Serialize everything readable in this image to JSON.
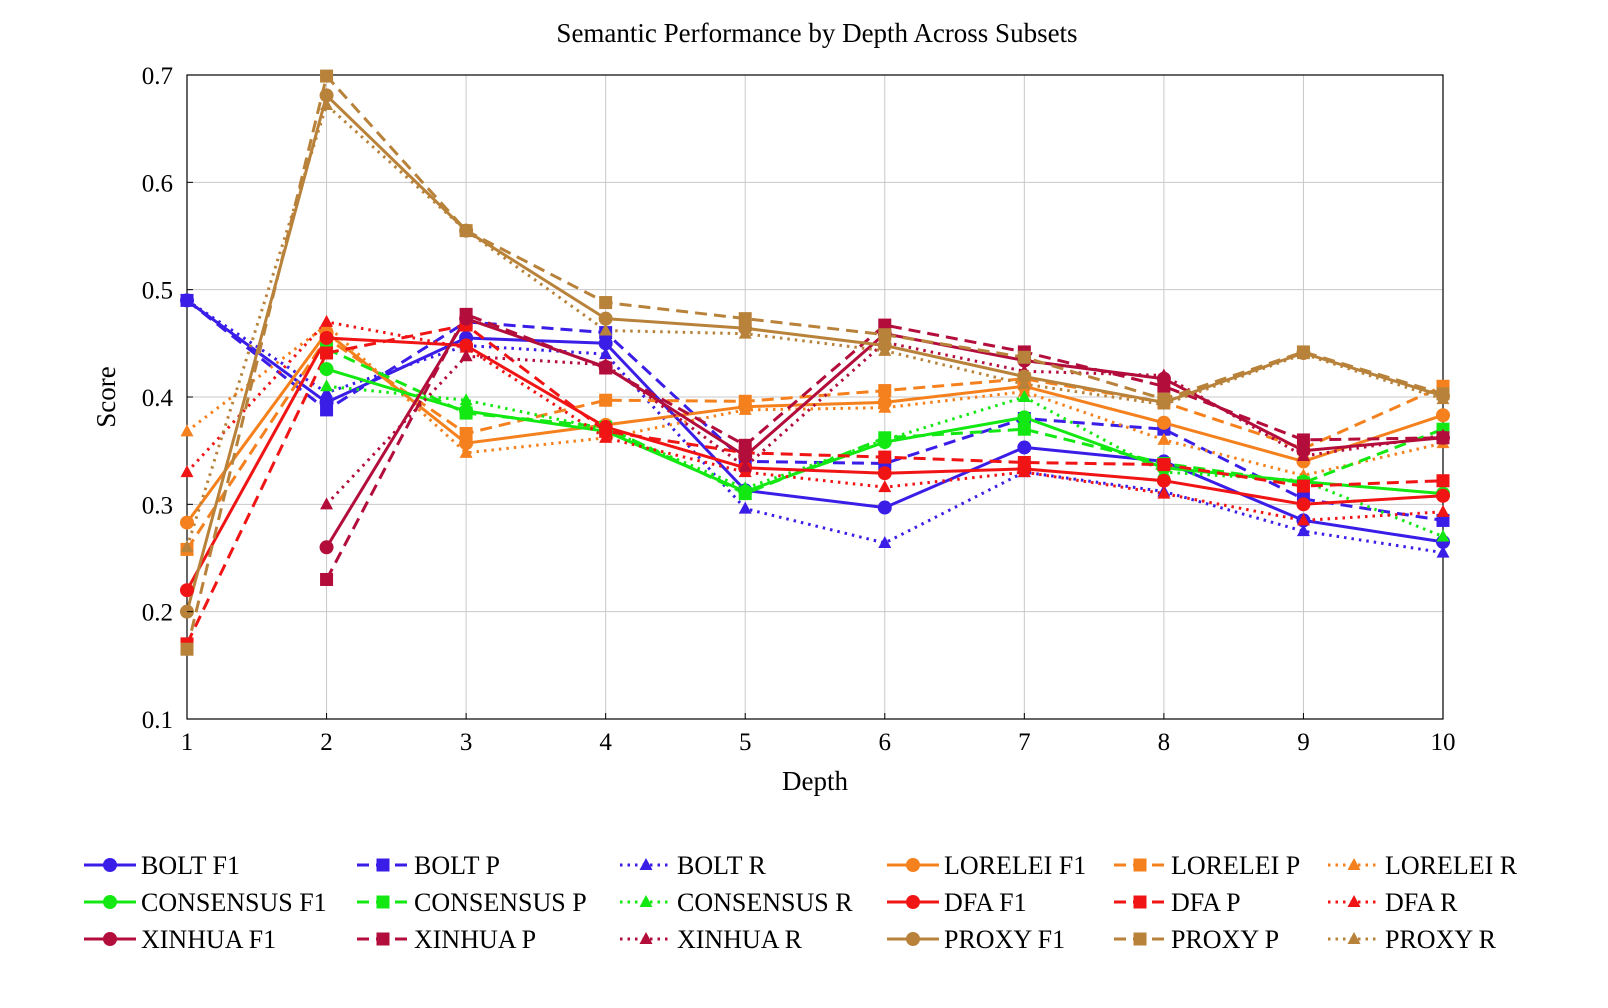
{
  "chart_data": {
    "type": "line",
    "title": "Semantic Performance by Depth Across Subsets",
    "xlabel": "Depth",
    "ylabel": "Score",
    "xlim": [
      1,
      10
    ],
    "ylim": [
      0.1,
      0.7
    ],
    "xticks": [
      "1",
      "2",
      "3",
      "4",
      "5",
      "6",
      "7",
      "8",
      "9",
      "10"
    ],
    "yticks": [
      "0.1",
      "0.2",
      "0.3",
      "0.4",
      "0.5",
      "0.6",
      "0.7"
    ],
    "grid": true,
    "legend_position": "bottom",
    "x": [
      1,
      2,
      3,
      4,
      5,
      6,
      7,
      8,
      9,
      10
    ],
    "series": [
      {
        "name": "BOLT F1",
        "color": "#3a1ee8",
        "dash": "solid",
        "marker": "circle",
        "values": [
          0.49,
          0.395,
          0.455,
          0.45,
          0.313,
          0.297,
          0.353,
          0.34,
          0.285,
          0.265
        ]
      },
      {
        "name": "BOLT P",
        "color": "#3a1ee8",
        "dash": "dashed",
        "marker": "square",
        "values": [
          0.49,
          0.388,
          0.47,
          0.46,
          0.34,
          0.338,
          0.38,
          0.37,
          0.305,
          0.285
        ]
      },
      {
        "name": "BOLT R",
        "color": "#3a1ee8",
        "dash": "dotted",
        "marker": "triangle",
        "values": [
          0.49,
          0.404,
          0.448,
          0.44,
          0.296,
          0.264,
          0.33,
          0.312,
          0.275,
          0.255
        ]
      },
      {
        "name": "LORELEI F1",
        "color": "#f5811e",
        "dash": "solid",
        "marker": "circle",
        "values": [
          0.283,
          0.46,
          0.357,
          0.374,
          0.391,
          0.395,
          0.41,
          0.376,
          0.34,
          0.383
        ]
      },
      {
        "name": "LORELEI P",
        "color": "#f5811e",
        "dash": "dashed",
        "marker": "square",
        "values": [
          0.258,
          0.455,
          0.366,
          0.397,
          0.396,
          0.406,
          0.417,
          0.395,
          0.352,
          0.41
        ]
      },
      {
        "name": "LORELEI R",
        "color": "#f5811e",
        "dash": "dotted",
        "marker": "triangle",
        "values": [
          0.368,
          0.467,
          0.348,
          0.362,
          0.388,
          0.39,
          0.405,
          0.36,
          0.327,
          0.357
        ]
      },
      {
        "name": "CONSENSUS F1",
        "color": "#13e813",
        "dash": "solid",
        "marker": "circle",
        "values": [
          null,
          0.426,
          0.387,
          0.368,
          0.312,
          0.358,
          0.381,
          0.334,
          0.321,
          0.31
        ]
      },
      {
        "name": "CONSENSUS P",
        "color": "#13e813",
        "dash": "dashed",
        "marker": "square",
        "values": [
          null,
          0.445,
          0.385,
          0.372,
          0.31,
          0.362,
          0.37,
          0.338,
          0.32,
          0.37
        ]
      },
      {
        "name": "CONSENSUS R",
        "color": "#13e813",
        "dash": "dotted",
        "marker": "triangle",
        "values": [
          null,
          0.41,
          0.397,
          0.37,
          0.315,
          0.36,
          0.4,
          0.33,
          0.322,
          0.27
        ]
      },
      {
        "name": "DFA F1",
        "color": "#f01414",
        "dash": "solid",
        "marker": "circle",
        "values": [
          0.22,
          0.455,
          0.448,
          0.372,
          0.334,
          0.329,
          0.333,
          0.322,
          0.3,
          0.308
        ]
      },
      {
        "name": "DFA P",
        "color": "#f01414",
        "dash": "dashed",
        "marker": "square",
        "values": [
          0.17,
          0.441,
          0.467,
          0.368,
          0.348,
          0.344,
          0.339,
          0.337,
          0.317,
          0.322
        ]
      },
      {
        "name": "DFA R",
        "color": "#f01414",
        "dash": "dotted",
        "marker": "triangle",
        "values": [
          0.33,
          0.47,
          0.446,
          0.362,
          0.33,
          0.316,
          0.33,
          0.31,
          0.285,
          0.293
        ]
      },
      {
        "name": "XINHUA F1",
        "color": "#b30d3c",
        "dash": "solid",
        "marker": "circle",
        "values": [
          null,
          0.26,
          0.473,
          0.428,
          0.345,
          0.459,
          0.434,
          0.417,
          0.35,
          0.362
        ]
      },
      {
        "name": "XINHUA P",
        "color": "#b30d3c",
        "dash": "dashed",
        "marker": "square",
        "values": [
          null,
          0.23,
          0.477,
          0.427,
          0.355,
          0.467,
          0.442,
          0.41,
          0.36,
          0.362
        ]
      },
      {
        "name": "XINHUA R",
        "color": "#b30d3c",
        "dash": "dotted",
        "marker": "triangle",
        "values": [
          null,
          0.3,
          0.438,
          0.43,
          0.335,
          0.451,
          0.424,
          0.42,
          0.345,
          0.364
        ]
      },
      {
        "name": "PROXY F1",
        "color": "#b8823a",
        "dash": "solid",
        "marker": "circle",
        "values": [
          0.2,
          0.681,
          0.555,
          0.473,
          0.464,
          0.448,
          0.419,
          0.395,
          0.441,
          0.401
        ]
      },
      {
        "name": "PROXY P",
        "color": "#b8823a",
        "dash": "dashed",
        "marker": "square",
        "values": [
          0.165,
          0.699,
          0.555,
          0.488,
          0.473,
          0.458,
          0.437,
          0.398,
          0.442,
          0.403
        ]
      },
      {
        "name": "PROXY R",
        "color": "#b8823a",
        "dash": "dotted",
        "marker": "triangle",
        "values": [
          0.26,
          0.672,
          0.555,
          0.462,
          0.459,
          0.443,
          0.412,
          0.393,
          0.44,
          0.398
        ]
      }
    ]
  }
}
